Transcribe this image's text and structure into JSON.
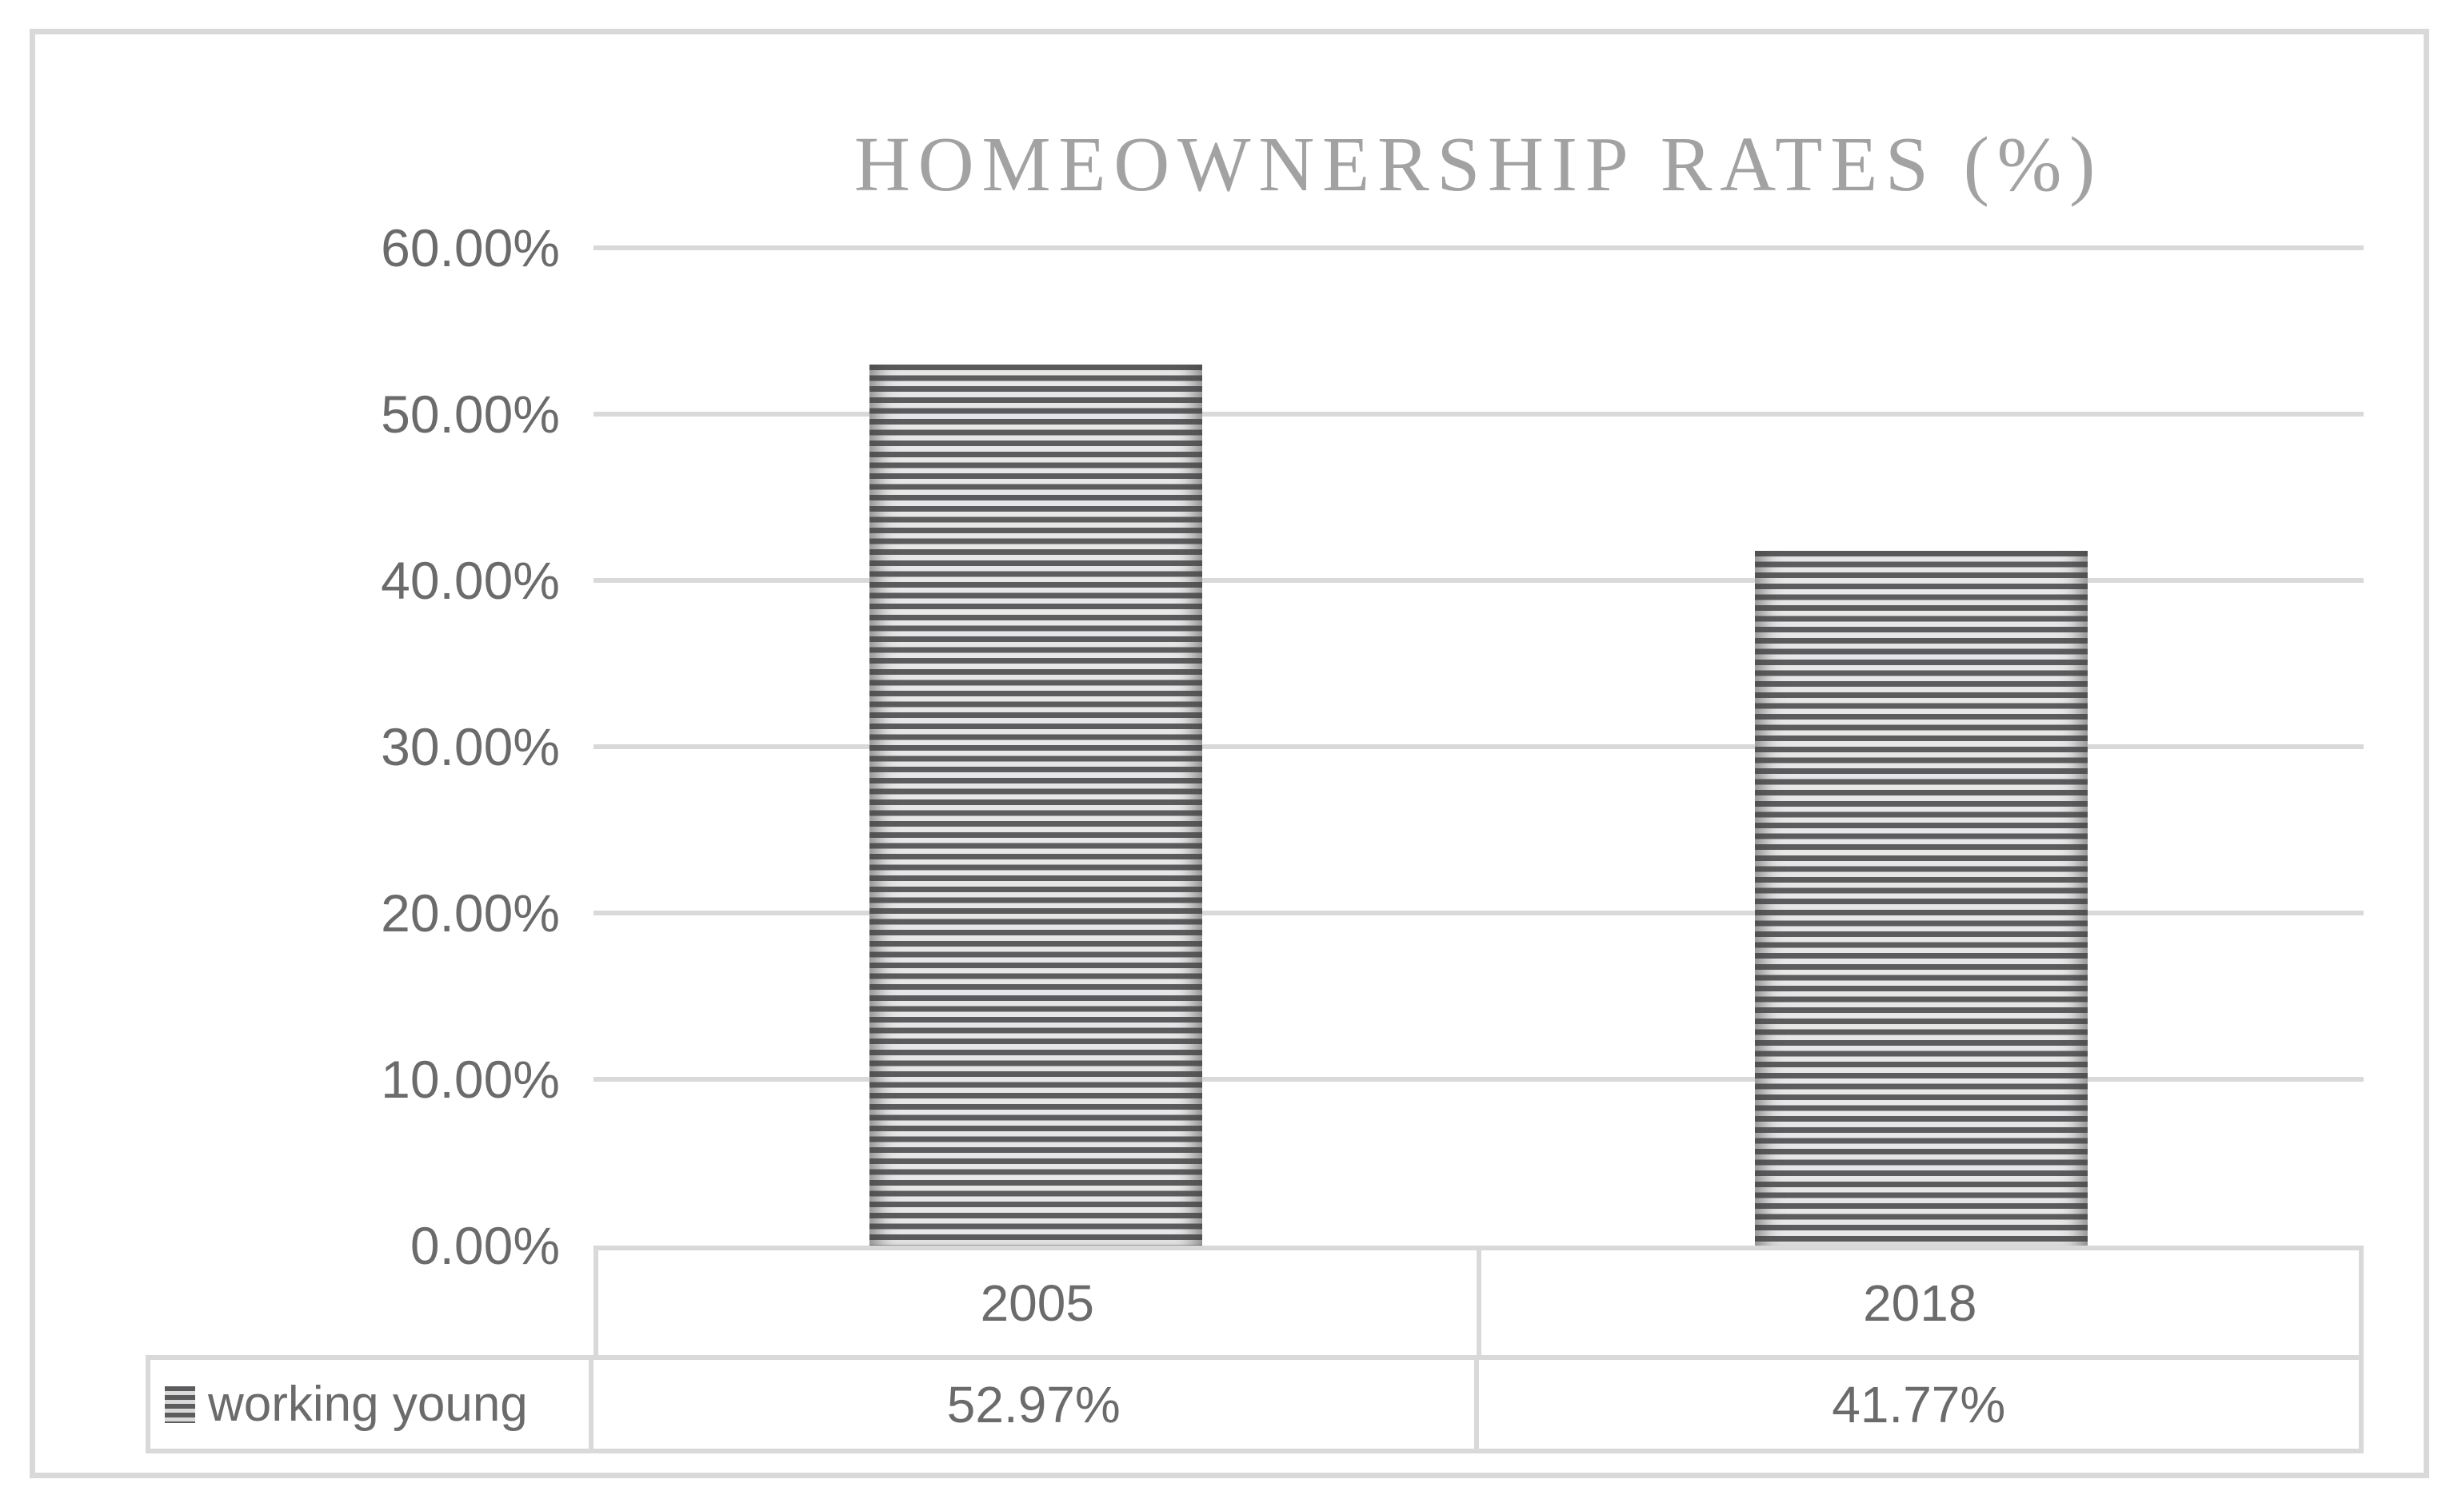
{
  "chart_data": {
    "type": "bar",
    "title": "HOMEOWNERSHIP RATES (%)",
    "categories": [
      "2005",
      "2018"
    ],
    "series": [
      {
        "name": "working young",
        "values": [
          52.97,
          41.77
        ],
        "value_labels": [
          "52.97%",
          "41.77%"
        ]
      }
    ],
    "ylim": [
      0,
      60
    ],
    "y_tick_step": 10,
    "y_tick_labels_desc": [
      "60.00%",
      "50.00%",
      "40.00%",
      "30.00%",
      "20.00%",
      "10.00%",
      "0.00%"
    ],
    "grid": true,
    "legend_position": "data-table-left",
    "bar_fill_pattern": "horizontal-stripes",
    "colors": {
      "stripe_dark": "#5c5c5e",
      "stripe_light": "#e7e7e7",
      "gridline": "#d9d9d9",
      "table_border": "#d9d9d9",
      "axis_text": "#6b6b6b",
      "title_text": "#a2a2a2",
      "background": "#ffffff"
    }
  }
}
